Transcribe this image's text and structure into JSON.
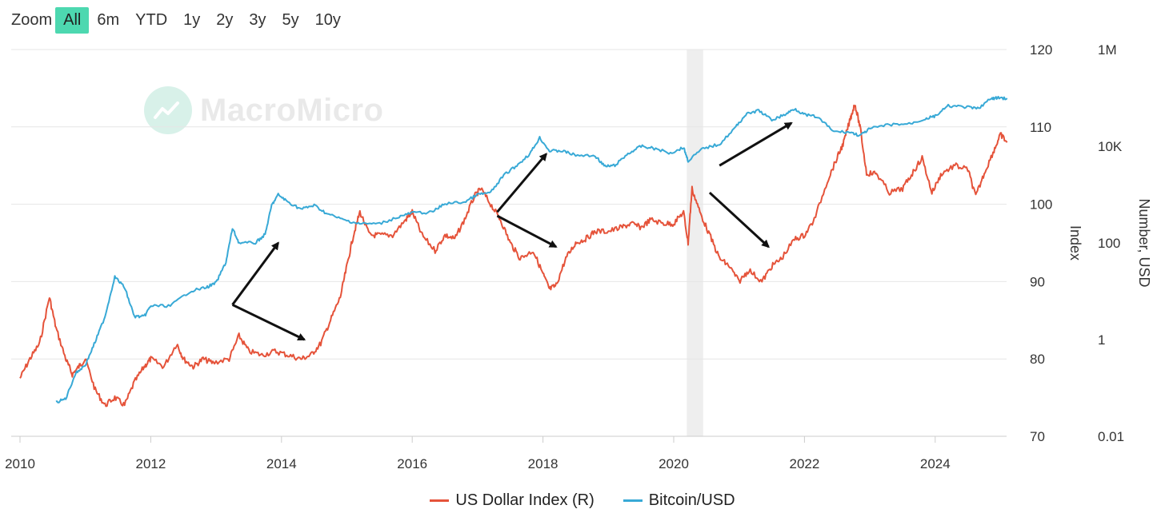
{
  "zoom": {
    "label": "Zoom",
    "buttons": [
      "All",
      "6m",
      "YTD",
      "1y",
      "2y",
      "3y",
      "5y",
      "10y"
    ],
    "active": "All"
  },
  "watermark": "MacroMicro",
  "colors": {
    "dxy": "#e5533a",
    "btc": "#38a9d6",
    "grid": "#e6e6e6",
    "highlight": "#eeeeee"
  },
  "chart_data": {
    "type": "line",
    "x_ticks": [
      "2010",
      "2012",
      "2014",
      "2016",
      "2018",
      "2020",
      "2022",
      "2024"
    ],
    "x_range": [
      2010,
      2025.15
    ],
    "left_axis": {
      "title": "Index",
      "ticks": [
        "120",
        "110",
        "100",
        "90",
        "80",
        "70"
      ],
      "range": [
        70,
        120
      ]
    },
    "right_axis": {
      "title": "Number, USD",
      "ticks": [
        "1M",
        "10K",
        "100",
        "1",
        "0.01"
      ],
      "range_log10": [
        -2,
        6
      ]
    },
    "highlight_band": [
      2020.2,
      2020.45
    ],
    "series": [
      {
        "name": "US Dollar Index (R)",
        "axis": "left",
        "color": "#e5533a",
        "points": [
          [
            2010.0,
            77.5
          ],
          [
            2010.15,
            80
          ],
          [
            2010.3,
            82
          ],
          [
            2010.45,
            88
          ],
          [
            2010.55,
            84
          ],
          [
            2010.7,
            80
          ],
          [
            2010.8,
            78
          ],
          [
            2010.9,
            79
          ],
          [
            2011.0,
            80
          ],
          [
            2011.15,
            76
          ],
          [
            2011.3,
            74
          ],
          [
            2011.45,
            75
          ],
          [
            2011.6,
            74
          ],
          [
            2011.75,
            77
          ],
          [
            2011.9,
            79
          ],
          [
            2012.0,
            80
          ],
          [
            2012.2,
            79
          ],
          [
            2012.4,
            82
          ],
          [
            2012.5,
            80
          ],
          [
            2012.65,
            79
          ],
          [
            2012.8,
            80
          ],
          [
            2012.95,
            79.5
          ],
          [
            2013.2,
            80
          ],
          [
            2013.35,
            83
          ],
          [
            2013.5,
            81
          ],
          [
            2013.7,
            80.5
          ],
          [
            2013.9,
            81
          ],
          [
            2014.1,
            80.5
          ],
          [
            2014.3,
            80
          ],
          [
            2014.45,
            80.5
          ],
          [
            2014.6,
            82
          ],
          [
            2014.75,
            85
          ],
          [
            2014.9,
            88
          ],
          [
            2015.0,
            92
          ],
          [
            2015.1,
            96
          ],
          [
            2015.2,
            99
          ],
          [
            2015.35,
            96
          ],
          [
            2015.5,
            96
          ],
          [
            2015.7,
            96
          ],
          [
            2015.9,
            98
          ],
          [
            2016.0,
            99
          ],
          [
            2016.15,
            96
          ],
          [
            2016.35,
            94
          ],
          [
            2016.5,
            96
          ],
          [
            2016.65,
            95.5
          ],
          [
            2016.8,
            98
          ],
          [
            2016.95,
            101
          ],
          [
            2017.05,
            102
          ],
          [
            2017.2,
            100
          ],
          [
            2017.35,
            98
          ],
          [
            2017.5,
            95
          ],
          [
            2017.65,
            93
          ],
          [
            2017.85,
            94
          ],
          [
            2018.0,
            91
          ],
          [
            2018.1,
            89
          ],
          [
            2018.2,
            89.5
          ],
          [
            2018.35,
            93
          ],
          [
            2018.5,
            95
          ],
          [
            2018.65,
            95.5
          ],
          [
            2018.8,
            96.5
          ],
          [
            2019.0,
            96.5
          ],
          [
            2019.2,
            97
          ],
          [
            2019.35,
            97.5
          ],
          [
            2019.5,
            97
          ],
          [
            2019.65,
            98
          ],
          [
            2019.85,
            97.5
          ],
          [
            2020.0,
            97.5
          ],
          [
            2020.15,
            99
          ],
          [
            2020.22,
            95
          ],
          [
            2020.28,
            102
          ],
          [
            2020.4,
            99
          ],
          [
            2020.55,
            96
          ],
          [
            2020.7,
            93
          ],
          [
            2020.85,
            92
          ],
          [
            2021.0,
            90
          ],
          [
            2021.15,
            91.5
          ],
          [
            2021.35,
            90
          ],
          [
            2021.5,
            92
          ],
          [
            2021.65,
            93
          ],
          [
            2021.85,
            95.5
          ],
          [
            2022.0,
            96
          ],
          [
            2022.15,
            98
          ],
          [
            2022.35,
            103
          ],
          [
            2022.5,
            106
          ],
          [
            2022.6,
            108
          ],
          [
            2022.7,
            111
          ],
          [
            2022.77,
            113
          ],
          [
            2022.85,
            110
          ],
          [
            2022.95,
            104
          ],
          [
            2023.1,
            104
          ],
          [
            2023.3,
            101.5
          ],
          [
            2023.5,
            102
          ],
          [
            2023.65,
            104
          ],
          [
            2023.8,
            106
          ],
          [
            2023.95,
            101.5
          ],
          [
            2024.1,
            104
          ],
          [
            2024.3,
            105
          ],
          [
            2024.5,
            104.5
          ],
          [
            2024.62,
            101
          ],
          [
            2024.75,
            104
          ],
          [
            2024.9,
            107
          ],
          [
            2025.0,
            109
          ],
          [
            2025.1,
            108
          ]
        ]
      },
      {
        "name": "Bitcoin/USD",
        "axis": "right_log",
        "color": "#38a9d6",
        "points": [
          [
            2010.55,
            0.05
          ],
          [
            2010.7,
            0.06
          ],
          [
            2010.85,
            0.2
          ],
          [
            2011.0,
            0.3
          ],
          [
            2011.15,
            0.9
          ],
          [
            2011.3,
            3
          ],
          [
            2011.45,
            20
          ],
          [
            2011.6,
            12
          ],
          [
            2011.75,
            3
          ],
          [
            2011.9,
            3
          ],
          [
            2012.0,
            5
          ],
          [
            2012.3,
            5
          ],
          [
            2012.6,
            10
          ],
          [
            2012.85,
            12
          ],
          [
            2013.0,
            15
          ],
          [
            2013.15,
            40
          ],
          [
            2013.25,
            200
          ],
          [
            2013.35,
            100
          ],
          [
            2013.6,
            100
          ],
          [
            2013.75,
            150
          ],
          [
            2013.85,
            600
          ],
          [
            2013.95,
            1000
          ],
          [
            2014.1,
            700
          ],
          [
            2014.3,
            500
          ],
          [
            2014.5,
            600
          ],
          [
            2014.7,
            400
          ],
          [
            2014.95,
            300
          ],
          [
            2015.2,
            250
          ],
          [
            2015.5,
            250
          ],
          [
            2015.8,
            350
          ],
          [
            2016.0,
            420
          ],
          [
            2016.3,
            430
          ],
          [
            2016.5,
            650
          ],
          [
            2016.8,
            700
          ],
          [
            2017.0,
            1000
          ],
          [
            2017.2,
            1100
          ],
          [
            2017.4,
            2500
          ],
          [
            2017.6,
            4000
          ],
          [
            2017.8,
            7000
          ],
          [
            2017.95,
            15000
          ],
          [
            2018.1,
            8000
          ],
          [
            2018.3,
            8000
          ],
          [
            2018.5,
            6500
          ],
          [
            2018.8,
            6300
          ],
          [
            2018.95,
            3800
          ],
          [
            2019.1,
            4000
          ],
          [
            2019.3,
            7000
          ],
          [
            2019.5,
            10000
          ],
          [
            2019.7,
            9000
          ],
          [
            2019.95,
            7200
          ],
          [
            2020.15,
            9500
          ],
          [
            2020.22,
            5000
          ],
          [
            2020.45,
            9000
          ],
          [
            2020.7,
            11000
          ],
          [
            2020.95,
            25000
          ],
          [
            2021.1,
            45000
          ],
          [
            2021.3,
            55000
          ],
          [
            2021.5,
            35000
          ],
          [
            2021.7,
            45000
          ],
          [
            2021.85,
            60000
          ],
          [
            2022.0,
            45000
          ],
          [
            2022.2,
            40000
          ],
          [
            2022.45,
            20000
          ],
          [
            2022.7,
            19500
          ],
          [
            2022.85,
            16500
          ],
          [
            2023.0,
            23000
          ],
          [
            2023.3,
            28000
          ],
          [
            2023.6,
            29000
          ],
          [
            2023.85,
            37000
          ],
          [
            2024.0,
            42000
          ],
          [
            2024.2,
            68000
          ],
          [
            2024.45,
            65000
          ],
          [
            2024.65,
            60000
          ],
          [
            2024.85,
            95000
          ],
          [
            2024.95,
            100000
          ],
          [
            2025.1,
            98000
          ]
        ]
      }
    ],
    "annotations": [
      {
        "type": "arrow",
        "from": [
          2013.25,
          87
        ],
        "to": [
          2013.95,
          95
        ],
        "note": "up"
      },
      {
        "type": "arrow",
        "from": [
          2013.25,
          87
        ],
        "to": [
          2014.35,
          82.5
        ],
        "note": "down"
      },
      {
        "type": "arrow",
        "from": [
          2017.3,
          99
        ],
        "to": [
          2018.05,
          106.5
        ],
        "note": "up"
      },
      {
        "type": "arrow",
        "from": [
          2017.3,
          98.5
        ],
        "to": [
          2018.2,
          94.5
        ],
        "note": "down"
      },
      {
        "type": "arrow",
        "from": [
          2020.7,
          105
        ],
        "to": [
          2021.8,
          110.5
        ],
        "note": "up"
      },
      {
        "type": "arrow",
        "from": [
          2020.55,
          101.5
        ],
        "to": [
          2021.45,
          94.5
        ],
        "note": "down"
      }
    ]
  },
  "legend": [
    {
      "label": "US Dollar Index (R)",
      "color": "#e5533a"
    },
    {
      "label": "Bitcoin/USD",
      "color": "#38a9d6"
    }
  ]
}
